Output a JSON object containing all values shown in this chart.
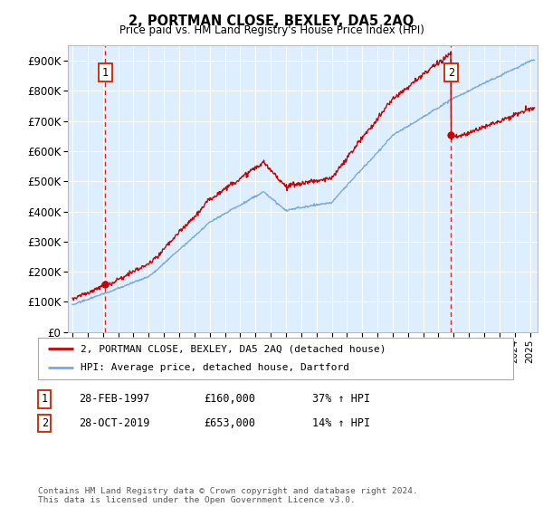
{
  "title": "2, PORTMAN CLOSE, BEXLEY, DA5 2AQ",
  "subtitle": "Price paid vs. HM Land Registry's House Price Index (HPI)",
  "ylabel_ticks": [
    "£0",
    "£100K",
    "£200K",
    "£300K",
    "£400K",
    "£500K",
    "£600K",
    "£700K",
    "£800K",
    "£900K"
  ],
  "ytick_values": [
    0,
    100000,
    200000,
    300000,
    400000,
    500000,
    600000,
    700000,
    800000,
    900000
  ],
  "ylim": [
    0,
    950000
  ],
  "xlim_start": 1994.7,
  "xlim_end": 2025.5,
  "sale1_date": 1997.16,
  "sale1_price": 160000,
  "sale2_date": 2019.83,
  "sale2_price": 653000,
  "hpi_color": "#7aaadd",
  "price_color": "#cc0000",
  "vline_color": "#cc0000",
  "bg_color": "#ddeeff",
  "grid_color": "#ffffff",
  "legend_label_red": "2, PORTMAN CLOSE, BEXLEY, DA5 2AQ (detached house)",
  "legend_label_blue": "HPI: Average price, detached house, Dartford",
  "note1_date": "28-FEB-1997",
  "note1_price": "£160,000",
  "note1_hpi": "37% ↑ HPI",
  "note2_date": "28-OCT-2019",
  "note2_price": "£653,000",
  "note2_hpi": "14% ↑ HPI",
  "footer": "Contains HM Land Registry data © Crown copyright and database right 2024.\nThis data is licensed under the Open Government Licence v3.0."
}
